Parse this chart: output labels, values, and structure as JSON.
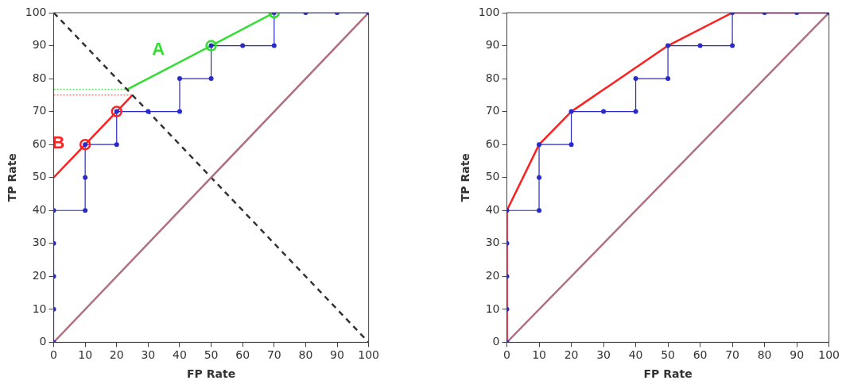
{
  "chart_data": [
    {
      "type": "line",
      "xlabel": "FP Rate",
      "ylabel": "TP Rate",
      "xlim": [
        0,
        100
      ],
      "ylim": [
        0,
        100
      ],
      "xticks": [
        0,
        10,
        20,
        30,
        40,
        50,
        60,
        70,
        80,
        90,
        100
      ],
      "yticks": [
        0,
        10,
        20,
        30,
        40,
        50,
        60,
        70,
        80,
        90,
        100
      ],
      "grid": false,
      "legend": false,
      "series": [
        {
          "type": "line",
          "color": "#b07080",
          "marker": "none",
          "line_style": "solid",
          "x": [
            0,
            100
          ],
          "values": [
            0,
            100
          ]
        },
        {
          "type": "line",
          "color": "#333333",
          "marker": "none",
          "line_style": "dashed",
          "x": [
            0,
            100
          ],
          "values": [
            100,
            0
          ]
        },
        {
          "type": "line",
          "color": "#2a2ac8",
          "marker": "circle",
          "line_style": "solid",
          "x": [
            0,
            0,
            0,
            0,
            0,
            10,
            10,
            10,
            20,
            20,
            30,
            40,
            40,
            50,
            50,
            60,
            70,
            70,
            80,
            90,
            100
          ],
          "values": [
            0,
            10,
            20,
            30,
            40,
            40,
            50,
            60,
            60,
            70,
            70,
            70,
            80,
            80,
            90,
            90,
            90,
            100,
            100,
            100,
            100
          ]
        },
        {
          "type": "line",
          "color": "#33dd33",
          "marker": "none",
          "line_style": "dotted",
          "x": [
            0,
            23.5
          ],
          "values": [
            76.8,
            76.8
          ]
        },
        {
          "type": "line",
          "color": "#ff3030",
          "marker": "none",
          "line_style": "dotted",
          "x": [
            0,
            25
          ],
          "values": [
            75,
            75
          ]
        },
        {
          "type": "line",
          "name": "A",
          "color": "#33dd33",
          "marker": "none",
          "line_style": "solid",
          "x": [
            23.5,
            50,
            70
          ],
          "values": [
            76.8,
            90,
            100
          ]
        },
        {
          "type": "line",
          "name": "B",
          "color": "#ff2020",
          "marker": "none",
          "line_style": "solid",
          "x": [
            0,
            10,
            20,
            25
          ],
          "values": [
            50,
            60,
            70,
            75
          ]
        },
        {
          "type": "scatter",
          "color": "#33dd33",
          "marker": "circle",
          "x": [
            50,
            70
          ],
          "values": [
            90,
            100
          ]
        },
        {
          "type": "scatter",
          "color": "#ff2020",
          "marker": "circle",
          "x": [
            10,
            20
          ],
          "values": [
            60,
            70
          ]
        }
      ]
    },
    {
      "type": "line",
      "xlabel": "FP Rate",
      "ylabel": "TP Rate",
      "xlim": [
        0,
        100
      ],
      "ylim": [
        0,
        100
      ],
      "xticks": [
        0,
        10,
        20,
        30,
        40,
        50,
        60,
        70,
        80,
        90,
        100
      ],
      "yticks": [
        0,
        10,
        20,
        30,
        40,
        50,
        60,
        70,
        80,
        90,
        100
      ],
      "grid": false,
      "legend": false,
      "series": [
        {
          "type": "line",
          "color": "#b07080",
          "marker": "none",
          "line_style": "solid",
          "x": [
            0,
            100
          ],
          "values": [
            0,
            100
          ]
        },
        {
          "type": "line",
          "color": "#2a2ac8",
          "marker": "circle",
          "line_style": "solid",
          "x": [
            0,
            0,
            0,
            0,
            0,
            10,
            10,
            10,
            20,
            20,
            30,
            40,
            40,
            50,
            50,
            60,
            70,
            70,
            80,
            90,
            100
          ],
          "values": [
            0,
            10,
            20,
            30,
            40,
            40,
            50,
            60,
            60,
            70,
            70,
            70,
            80,
            80,
            90,
            90,
            90,
            100,
            100,
            100,
            100
          ]
        },
        {
          "type": "line",
          "color": "#ff2020",
          "marker": "none",
          "line_style": "solid",
          "x": [
            0,
            0,
            10,
            20,
            50,
            70,
            100
          ],
          "values": [
            0,
            40,
            60,
            70,
            90,
            100,
            100
          ]
        }
      ]
    }
  ]
}
